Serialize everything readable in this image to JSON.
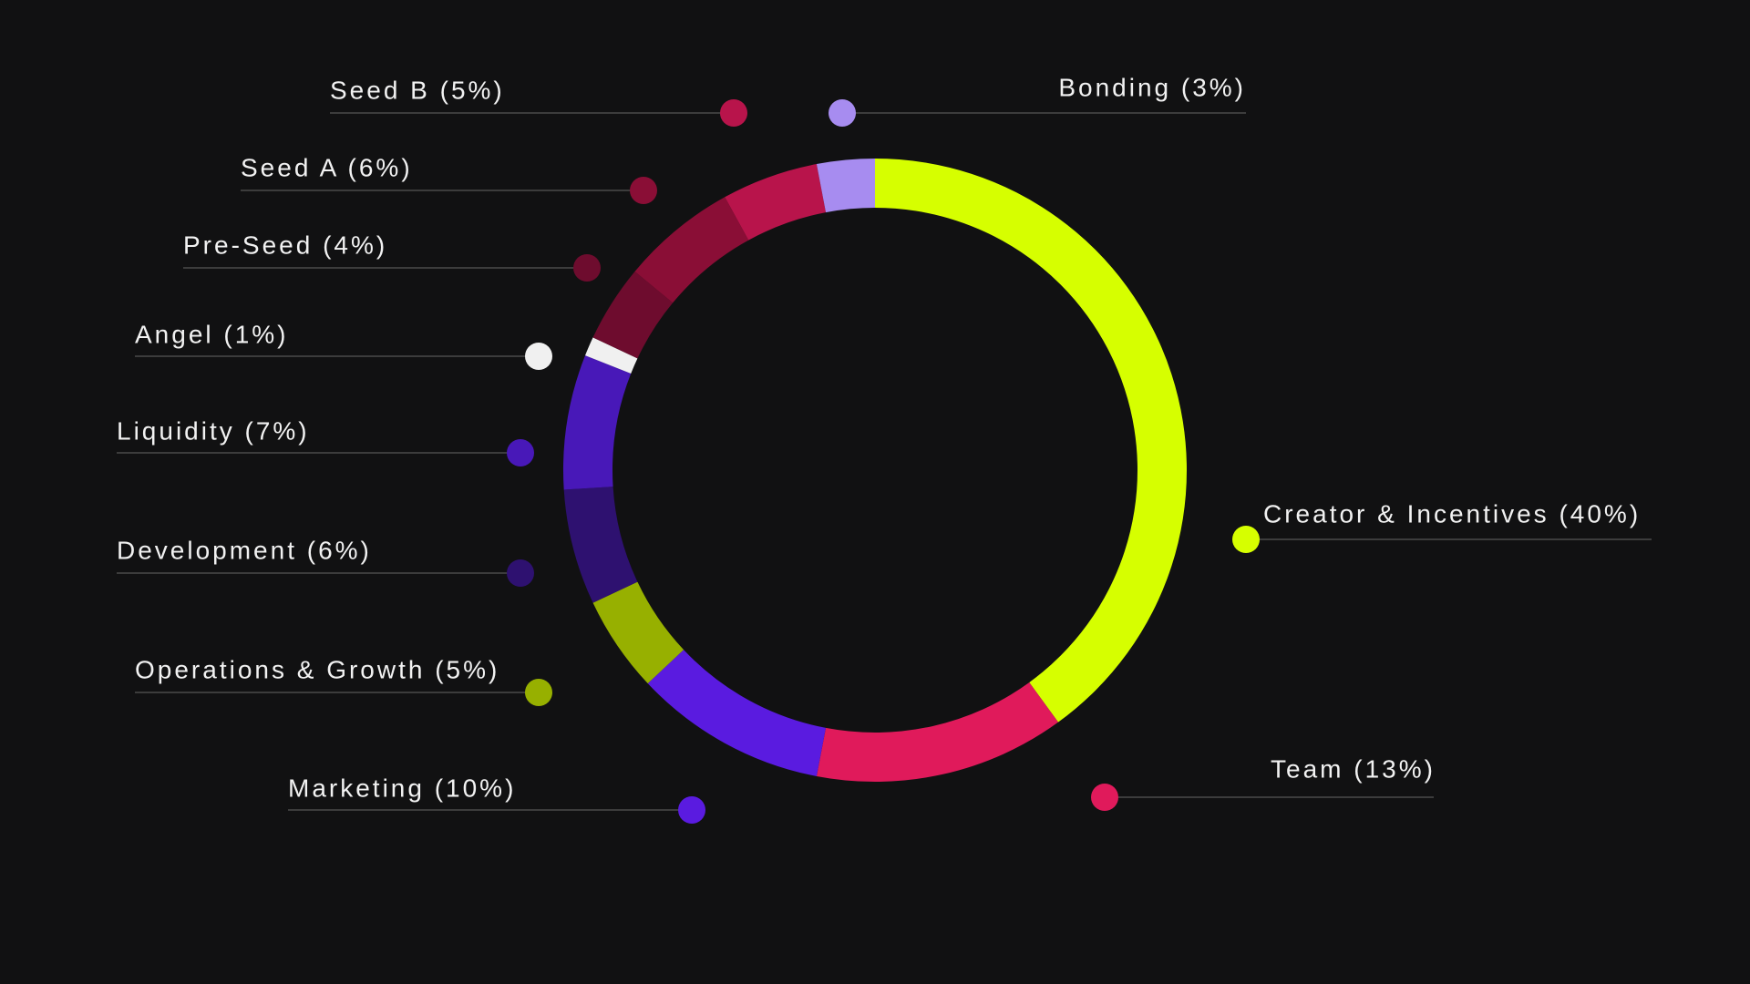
{
  "chart_data": {
    "type": "pie",
    "subtype": "donut",
    "title": "",
    "legend": "none",
    "grid": false,
    "slices": [
      {
        "label": "Creator & Incentives (40%)",
        "value": 40,
        "color": "#d6ff00"
      },
      {
        "label": "Team (13%)",
        "value": 13,
        "color": "#e01a5b"
      },
      {
        "label": "Marketing (10%)",
        "value": 10,
        "color": "#5a1be0"
      },
      {
        "label": "Operations & Growth (5%)",
        "value": 5,
        "color": "#97b000"
      },
      {
        "label": "Development (6%)",
        "value": 6,
        "color": "#2e1170"
      },
      {
        "label": "Liquidity (7%)",
        "value": 7,
        "color": "#4818b8"
      },
      {
        "label": "Angel (1%)",
        "value": 1,
        "color": "#f0f0f0"
      },
      {
        "label": "Pre-Seed (4%)",
        "value": 4,
        "color": "#6e0c2e"
      },
      {
        "label": "Seed A (6%)",
        "value": 6,
        "color": "#8a0e36"
      },
      {
        "label": "Seed B (5%)",
        "value": 5,
        "color": "#b8144b"
      },
      {
        "label": "Bonding (3%)",
        "value": 3,
        "color": "#a78cf0"
      }
    ]
  }
}
